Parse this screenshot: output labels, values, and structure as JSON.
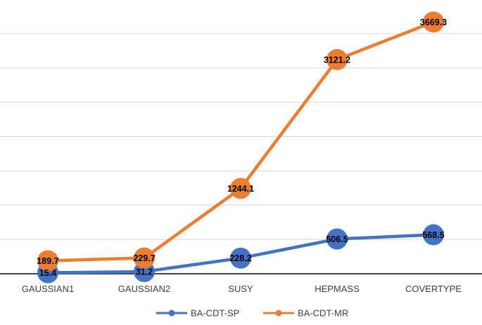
{
  "chart_data": {
    "type": "line",
    "categories": [
      "GAUSSIAN1",
      "GAUSSIAN2",
      "SUSY",
      "HEPMASS",
      "COVERTYPE"
    ],
    "series": [
      {
        "name": "BA-CDT-SP",
        "values": [
          15.4,
          31.2,
          228.2,
          506.5,
          568.5
        ],
        "labels": [
          "15.4",
          "31.2",
          "228.2",
          "506.5",
          "568.5"
        ],
        "color": "#4472C4"
      },
      {
        "name": "BA-CDT-MR",
        "values": [
          189.7,
          229.7,
          1244.1,
          3121.2,
          3669.3
        ],
        "labels": [
          "189.7",
          "229.7",
          "1244.1",
          "3121.2",
          "3669.3"
        ],
        "color": "#ED7D31"
      }
    ],
    "ylim": [
      0,
      4000
    ],
    "y_gridline_step": 500,
    "y_tick_labels_shown": false,
    "grid": true,
    "legend_position": "bottom",
    "title": "",
    "xlabel": "",
    "ylabel": ""
  }
}
